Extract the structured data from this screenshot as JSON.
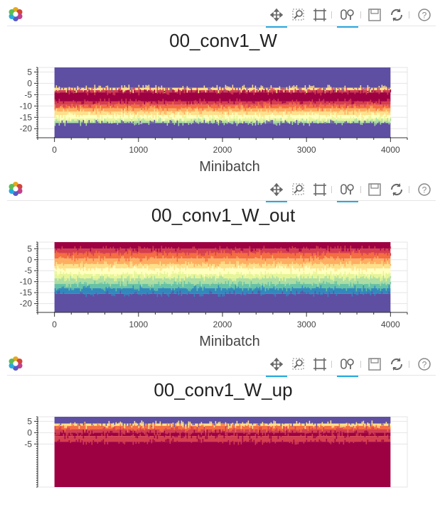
{
  "toolbar": {
    "logo_icon": "bokeh-logo-icon",
    "tools": [
      "pan-icon",
      "box-zoom-icon",
      "zoom-to-fit-icon",
      "wheel-zoom-icon",
      "save-icon",
      "reset-icon",
      "help-icon"
    ]
  },
  "colors": {
    "palette_spectral": [
      "#5e4fa2",
      "#3288bd",
      "#66c2a5",
      "#abdda4",
      "#e6f598",
      "#ffffbf",
      "#fee08b",
      "#fdae61",
      "#f46d43",
      "#d53e4f",
      "#9e0142"
    ],
    "toolbar_active": "#26aae1"
  },
  "chart_data": [
    {
      "type": "heatmap",
      "title": "00_conv1_W",
      "xlabel": "Minibatch",
      "ylabel": "",
      "xlim": [
        -200,
        4200
      ],
      "ylim": [
        -24,
        7
      ],
      "x_ticks": [
        0,
        1000,
        2000,
        3000,
        4000
      ],
      "y_ticks": [
        5,
        0,
        -5,
        -10,
        -15,
        -20
      ],
      "grid": true,
      "bands_top_to_bottom": [
        {
          "from": 7,
          "to": -2,
          "color": "#5e4fa2"
        },
        {
          "from": -2,
          "to": -3,
          "color": "#fee08b"
        },
        {
          "from": -3,
          "to": -4,
          "color": "#d53e4f"
        },
        {
          "from": -4,
          "to": -8,
          "color": "#9e0142"
        },
        {
          "from": -8,
          "to": -9.5,
          "color": "#d53e4f"
        },
        {
          "from": -9.5,
          "to": -11,
          "color": "#f46d43"
        },
        {
          "from": -11,
          "to": -12.5,
          "color": "#fdae61"
        },
        {
          "from": -12.5,
          "to": -14,
          "color": "#fee08b"
        },
        {
          "from": -14,
          "to": -15.5,
          "color": "#ffffbf"
        },
        {
          "from": -15.5,
          "to": -16.5,
          "color": "#e6f598"
        },
        {
          "from": -16.5,
          "to": -17.5,
          "color": "#abdda4"
        },
        {
          "from": -17.5,
          "to": -24,
          "color": "#5e4fa2"
        }
      ]
    },
    {
      "type": "heatmap",
      "title": "00_conv1_W_out",
      "xlabel": "Minibatch",
      "ylabel": "",
      "xlim": [
        -200,
        4200
      ],
      "ylim": [
        -24,
        8
      ],
      "x_ticks": [
        0,
        1000,
        2000,
        3000,
        4000
      ],
      "y_ticks": [
        5,
        0,
        -5,
        -10,
        -15,
        -20
      ],
      "grid": true,
      "bands_top_to_bottom": [
        {
          "from": 8,
          "to": 5,
          "color": "#9e0142"
        },
        {
          "from": 5,
          "to": 3,
          "color": "#d53e4f"
        },
        {
          "from": 3,
          "to": 0.5,
          "color": "#f46d43"
        },
        {
          "from": 0.5,
          "to": -2,
          "color": "#fdae61"
        },
        {
          "from": -2,
          "to": -4,
          "color": "#fee08b"
        },
        {
          "from": -4,
          "to": -6.5,
          "color": "#ffffbf"
        },
        {
          "from": -6.5,
          "to": -8.5,
          "color": "#e6f598"
        },
        {
          "from": -8.5,
          "to": -11,
          "color": "#abdda4"
        },
        {
          "from": -11,
          "to": -13,
          "color": "#66c2a5"
        },
        {
          "from": -13,
          "to": -15.5,
          "color": "#3288bd"
        },
        {
          "from": -15.5,
          "to": -24,
          "color": "#5e4fa2"
        }
      ]
    },
    {
      "type": "heatmap",
      "title": "00_conv1_W_up",
      "xlabel": "",
      "ylabel": "",
      "xlim": [
        -200,
        4200
      ],
      "ylim": [
        -24,
        7
      ],
      "y_ticks": [
        5,
        0,
        -5
      ],
      "grid": true,
      "bands_top_to_bottom": [
        {
          "from": 7,
          "to": 4,
          "color": "#5e4fa2"
        },
        {
          "from": 4,
          "to": 3,
          "color": "#fee08b"
        },
        {
          "from": 3,
          "to": 1.5,
          "color": "#f46d43"
        },
        {
          "from": 1.5,
          "to": 0,
          "color": "#d53e4f"
        },
        {
          "from": 0,
          "to": -1.5,
          "color": "#9e0142"
        },
        {
          "from": -1.5,
          "to": -4,
          "color": "#d53e4f"
        },
        {
          "from": -4,
          "to": -24,
          "color": "#9e0142"
        }
      ]
    }
  ]
}
